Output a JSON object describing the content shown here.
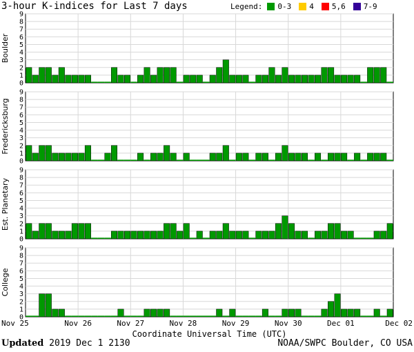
{
  "title": "3-hour K-indices for Last 7 days",
  "legend": {
    "label": "Legend:",
    "items": [
      {
        "label": "0-3",
        "color": "#009900"
      },
      {
        "label": "4",
        "color": "#ffcc00"
      },
      {
        "label": "5,6",
        "color": "#ff0000"
      },
      {
        "label": "7-9",
        "color": "#330099"
      }
    ]
  },
  "footer": {
    "updated_label": "Updated",
    "updated_value": "2019 Dec  1 2130",
    "source": "NOAA/SWPC Boulder, CO USA"
  },
  "chart_data": {
    "type": "bar",
    "xlabel": "Coordinate Universal Time (UTC)",
    "x_tick_labels": [
      "Nov 25",
      "Nov 26",
      "Nov 27",
      "Nov 28",
      "Nov 29",
      "Nov 30",
      "Dec 01",
      "Dec 02"
    ],
    "ylim": [
      0,
      9
    ],
    "y_tick_labels": [
      "0",
      "1",
      "2",
      "3",
      "4",
      "5",
      "6",
      "7",
      "8",
      "9"
    ],
    "interval_hours": 3,
    "series": [
      {
        "name": "Boulder",
        "values": [
          2,
          1,
          2,
          2,
          1,
          2,
          1,
          1,
          1,
          1,
          0,
          0,
          0,
          2,
          1,
          1,
          0,
          1,
          2,
          1,
          2,
          2,
          2,
          0,
          1,
          1,
          1,
          0,
          1,
          2,
          3,
          1,
          1,
          1,
          0,
          1,
          1,
          2,
          1,
          2,
          1,
          1,
          1,
          1,
          1,
          2,
          2,
          1,
          1,
          1,
          1,
          0,
          2,
          2,
          2,
          0
        ]
      },
      {
        "name": "Fredericksburg",
        "values": [
          2,
          1,
          2,
          2,
          1,
          1,
          1,
          1,
          1,
          2,
          0,
          0,
          1,
          2,
          0,
          0,
          0,
          1,
          0,
          1,
          1,
          2,
          1,
          0,
          1,
          0,
          0,
          0,
          1,
          1,
          2,
          0,
          1,
          1,
          0,
          1,
          1,
          0,
          1,
          2,
          1,
          1,
          1,
          0,
          1,
          0,
          1,
          1,
          1,
          0,
          1,
          0,
          1,
          1,
          1,
          0
        ]
      },
      {
        "name": "Est. Planetary",
        "values": [
          2,
          1,
          2,
          2,
          1,
          1,
          1,
          2,
          2,
          2,
          0,
          0,
          0,
          1,
          1,
          1,
          1,
          1,
          1,
          1,
          1,
          2,
          2,
          1,
          2,
          0,
          1,
          0,
          1,
          1,
          2,
          1,
          1,
          1,
          0,
          1,
          1,
          1,
          2,
          3,
          2,
          1,
          1,
          0,
          1,
          1,
          2,
          2,
          1,
          1,
          0,
          0,
          0,
          1,
          1,
          2
        ]
      },
      {
        "name": "College",
        "values": [
          0,
          0,
          3,
          3,
          1,
          1,
          0,
          0,
          0,
          0,
          0,
          0,
          0,
          0,
          1,
          0,
          0,
          0,
          1,
          1,
          1,
          1,
          0,
          0,
          0,
          0,
          0,
          0,
          0,
          1,
          0,
          1,
          0,
          0,
          0,
          0,
          1,
          0,
          0,
          1,
          1,
          1,
          0,
          0,
          0,
          1,
          2,
          3,
          1,
          1,
          1,
          0,
          0,
          1,
          0,
          1
        ]
      }
    ]
  }
}
